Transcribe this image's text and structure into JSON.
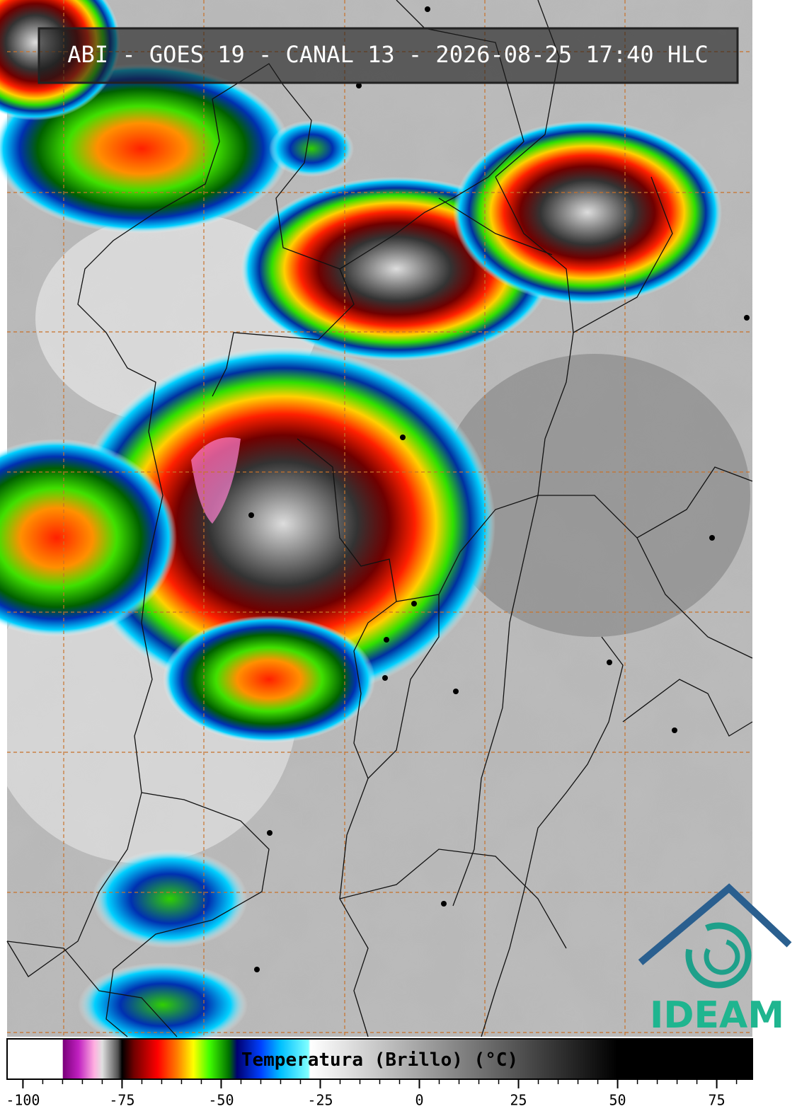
{
  "header": {
    "title": "ABI - GOES 19 - CANAL 13 - 2026-08-25 17:40 HLC"
  },
  "colorbar": {
    "label": "Temperatura (Brillo) (°C)",
    "xlim": [
      -104,
      84
    ],
    "xticks": [
      -100,
      -75,
      -50,
      -25,
      0,
      25,
      50,
      75
    ],
    "minor_tick_step": 5,
    "colormap": [
      {
        "value": -104,
        "color": "#ffffff"
      },
      {
        "value": -90,
        "color": "#ffffff"
      },
      {
        "value": -89.9,
        "color": "#7a007a"
      },
      {
        "value": -86,
        "color": "#c020c0"
      },
      {
        "value": -82,
        "color": "#ffb0e0"
      },
      {
        "value": -80,
        "color": "#e0e0e0"
      },
      {
        "value": -76,
        "color": "#505050"
      },
      {
        "value": -75,
        "color": "#000000"
      },
      {
        "value": -72,
        "color": "#700000"
      },
      {
        "value": -66,
        "color": "#ff0000"
      },
      {
        "value": -61,
        "color": "#ff8000"
      },
      {
        "value": -57,
        "color": "#ffff00"
      },
      {
        "value": -53,
        "color": "#40ff00"
      },
      {
        "value": -48,
        "color": "#007000"
      },
      {
        "value": -46,
        "color": "#000070"
      },
      {
        "value": -40,
        "color": "#0040ff"
      },
      {
        "value": -35,
        "color": "#00c0ff"
      },
      {
        "value": -28,
        "color": "#80ffff"
      },
      {
        "value": -27.5,
        "color": "#ffffff"
      },
      {
        "value": 50,
        "color": "#000000"
      },
      {
        "value": 84,
        "color": "#000000"
      }
    ]
  },
  "logo": {
    "text": "IDEAM"
  }
}
